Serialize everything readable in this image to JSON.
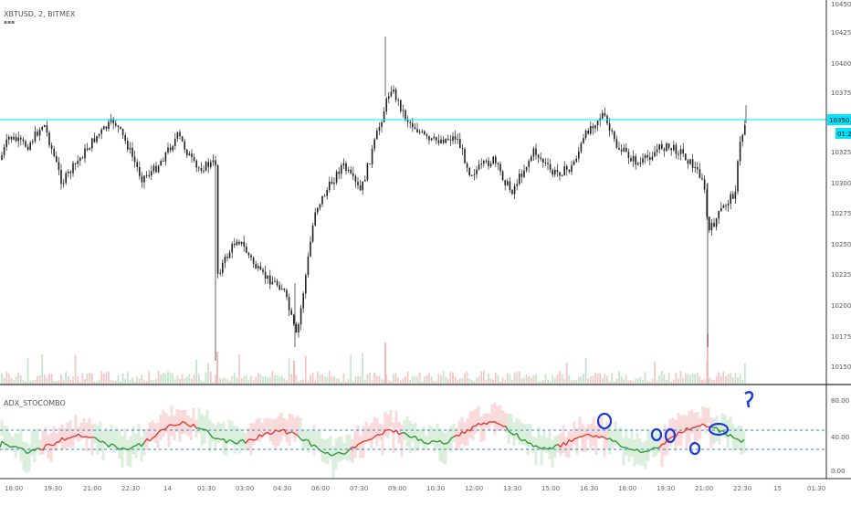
{
  "chart": {
    "symbol_line": "XBTUSD, 2, BITMEX",
    "indicator_name": "ADX_STOCOMBO"
  },
  "price_axis": {
    "ticks": [
      "10450.0",
      "10425.0",
      "10400.0",
      "10375.0",
      "10350.0",
      "10325.0",
      "10300.0",
      "10275.0",
      "10250.0",
      "10225.0",
      "10200.0",
      "10175.0",
      "10150.0"
    ],
    "current_price": "10350.0",
    "countdown": "01:24"
  },
  "indicator_axis": {
    "ticks": [
      "80.00",
      "40.00",
      "0.00"
    ]
  },
  "time_axis": {
    "labels": [
      "18:00",
      "19:30",
      "21:00",
      "22:30",
      "14",
      "01:30",
      "03:00",
      "04:30",
      "06:00",
      "07:30",
      "09:00",
      "10:30",
      "12:00",
      "13:30",
      "15:00",
      "16:30",
      "18:00",
      "19:30",
      "21:00",
      "22:30",
      "15",
      "01:30"
    ]
  },
  "colors": {
    "current_line": "#00e5ff",
    "badge_bg": "#00e5ff",
    "candle": "#222222",
    "up_line": "#2e9a3a",
    "down_line": "#e53935",
    "band_green": "#cde8cd",
    "band_red": "#f8cccc",
    "dashed": "#2e86c1",
    "annotation": "#1e3cd2"
  },
  "icons": {
    "annotation_circle": "blue-circle-annotation-icon",
    "question_mark": "question-mark-icon"
  }
}
